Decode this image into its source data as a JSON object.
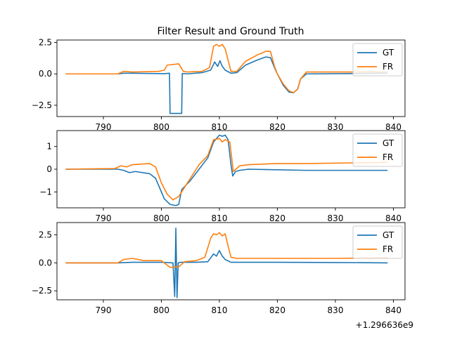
{
  "figure": {
    "title": "Filter Result and Ground Truth",
    "offset_label": "+1.296636e9"
  },
  "colors": {
    "gt": "#1f77b4",
    "fr": "#ff7f0e",
    "legend_border": "#cccccc"
  },
  "chart_data": [
    {
      "type": "line",
      "title": "Filter Result and Ground Truth",
      "xlim": [
        782,
        842
      ],
      "ylim": [
        -3.4,
        2.7
      ],
      "x_ticks": [
        790,
        800,
        810,
        820,
        830,
        840
      ],
      "y_ticks": [
        2.5,
        0.0,
        -2.5
      ],
      "y_tick_labels": [
        "2.5",
        "0.0",
        "−2.5"
      ],
      "legend": {
        "placement": "top-right",
        "entries": [
          "GT",
          "FR"
        ]
      },
      "series": [
        {
          "name": "GT",
          "color": "#1f77b4",
          "x": [
            783.5,
            792.5,
            793.5,
            795,
            800.5,
            801.4,
            801.5,
            803.5,
            803.6,
            804.5,
            807,
            808.5,
            809.2,
            809.7,
            810.1,
            810.5,
            811,
            812,
            813,
            814.5,
            816.5,
            818,
            818.8,
            819.5,
            820,
            821,
            822,
            822.8,
            823.5,
            824,
            825,
            839
          ],
          "y": [
            0,
            0,
            0.05,
            0.05,
            0.02,
            0.05,
            -3.15,
            -3.15,
            0.03,
            0,
            0.1,
            0.3,
            0.95,
            0.6,
            1.05,
            0.6,
            0.3,
            0.05,
            0.1,
            0.7,
            1.1,
            1.35,
            1.3,
            0.5,
            0,
            -0.9,
            -1.45,
            -1.5,
            -1.2,
            -0.4,
            0,
            0.05
          ]
        },
        {
          "name": "FR",
          "color": "#ff7f0e",
          "x": [
            783.5,
            792.5,
            793.5,
            795,
            799.5,
            800.5,
            801,
            803,
            803.8,
            804.5,
            807,
            808.3,
            809,
            809.5,
            810,
            810.5,
            811,
            812,
            813,
            814.5,
            816.5,
            818,
            818.8,
            819.5,
            820,
            821,
            822,
            822.8,
            823.5,
            824,
            825,
            839
          ],
          "y": [
            0,
            0,
            0.2,
            0.15,
            0.2,
            0.3,
            0.7,
            0.8,
            0.2,
            0.15,
            0.2,
            0.5,
            2.2,
            2.35,
            2.2,
            2.35,
            2.0,
            0.2,
            0.2,
            1.0,
            1.5,
            1.8,
            1.8,
            0.6,
            0,
            -0.8,
            -1.35,
            -1.5,
            -1.2,
            -0.4,
            0.15,
            0.15
          ]
        }
      ]
    },
    {
      "type": "line",
      "xlim": [
        782,
        842
      ],
      "ylim": [
        -1.7,
        1.7
      ],
      "x_ticks": [
        790,
        800,
        810,
        820,
        830,
        840
      ],
      "y_ticks": [
        1,
        0,
        -1
      ],
      "y_tick_labels": [
        "1",
        "0",
        "−1"
      ],
      "legend": {
        "placement": "top-right",
        "entries": [
          "GT",
          "FR"
        ]
      },
      "series": [
        {
          "name": "GT",
          "color": "#1f77b4",
          "x": [
            783.5,
            792.5,
            793.5,
            794.5,
            795.5,
            798,
            799,
            800,
            800.5,
            801.5,
            802.5,
            803,
            803.5,
            805,
            806.5,
            808,
            809,
            810,
            810.5,
            811,
            811.5,
            812,
            812.3,
            812.8,
            813.5,
            815,
            825,
            830,
            839
          ],
          "y": [
            0,
            0,
            -0.05,
            -0.15,
            -0.1,
            -0.2,
            -0.4,
            -1.0,
            -1.3,
            -1.55,
            -1.6,
            -1.55,
            -0.9,
            -0.5,
            0,
            0.5,
            1.2,
            1.5,
            1.45,
            1.5,
            1.3,
            0.2,
            -0.3,
            -0.1,
            -0.05,
            0,
            -0.05,
            -0.05,
            -0.05
          ]
        },
        {
          "name": "FR",
          "color": "#ff7f0e",
          "x": [
            783.5,
            792,
            793,
            794,
            795,
            798,
            799,
            800,
            801,
            802,
            803,
            805,
            806.5,
            808,
            809,
            810,
            810.5,
            811,
            811.8,
            812.4,
            813.5,
            815,
            820,
            825,
            839
          ],
          "y": [
            0,
            0.03,
            0.15,
            0.1,
            0.2,
            0.25,
            0.1,
            -0.6,
            -1.1,
            -1.35,
            -1.2,
            -0.4,
            0.2,
            0.6,
            1.3,
            1.35,
            1.2,
            1.3,
            1.2,
            -0.1,
            0.15,
            0.2,
            0.25,
            0.25,
            0.3
          ]
        }
      ]
    },
    {
      "type": "line",
      "xlim": [
        782,
        842
      ],
      "ylim": [
        -3.3,
        3.6
      ],
      "x_ticks": [
        790,
        800,
        810,
        820,
        830,
        840
      ],
      "y_ticks": [
        2.5,
        0.0,
        -2.5
      ],
      "y_tick_labels": [
        "2.5",
        "0.0",
        "−2.5"
      ],
      "legend": {
        "placement": "top-right",
        "entries": [
          "GT",
          "FR"
        ]
      },
      "series": [
        {
          "name": "GT",
          "color": "#1f77b4",
          "x": [
            783.5,
            792.5,
            795,
            800,
            802,
            802.3,
            802.5,
            802.7,
            802.9,
            803.3,
            806,
            808,
            809,
            809.5,
            810,
            810.5,
            811,
            812,
            813,
            820,
            830,
            839
          ],
          "y": [
            0,
            0,
            0.05,
            0.05,
            0,
            -3.0,
            3.1,
            -3.1,
            0,
            0.05,
            0.05,
            0.1,
            0.8,
            0.6,
            1.1,
            0.6,
            0.3,
            0.05,
            0.05,
            0.05,
            0.03,
            0
          ]
        },
        {
          "name": "FR",
          "color": "#ff7f0e",
          "x": [
            783.5,
            792.5,
            793.5,
            795,
            797,
            800,
            801,
            801.5,
            803,
            804,
            806,
            807.5,
            808.5,
            809,
            809.5,
            810,
            810.5,
            811,
            811.5,
            812,
            813,
            820,
            830,
            839
          ],
          "y": [
            0,
            0,
            0.3,
            0.4,
            0.2,
            0.2,
            -0.2,
            -0.4,
            -0.35,
            0.1,
            0.2,
            0.5,
            2.2,
            2.6,
            2.5,
            2.7,
            2.4,
            2.6,
            1.5,
            0.5,
            0.4,
            0.4,
            0.4,
            0.45
          ]
        }
      ]
    }
  ]
}
